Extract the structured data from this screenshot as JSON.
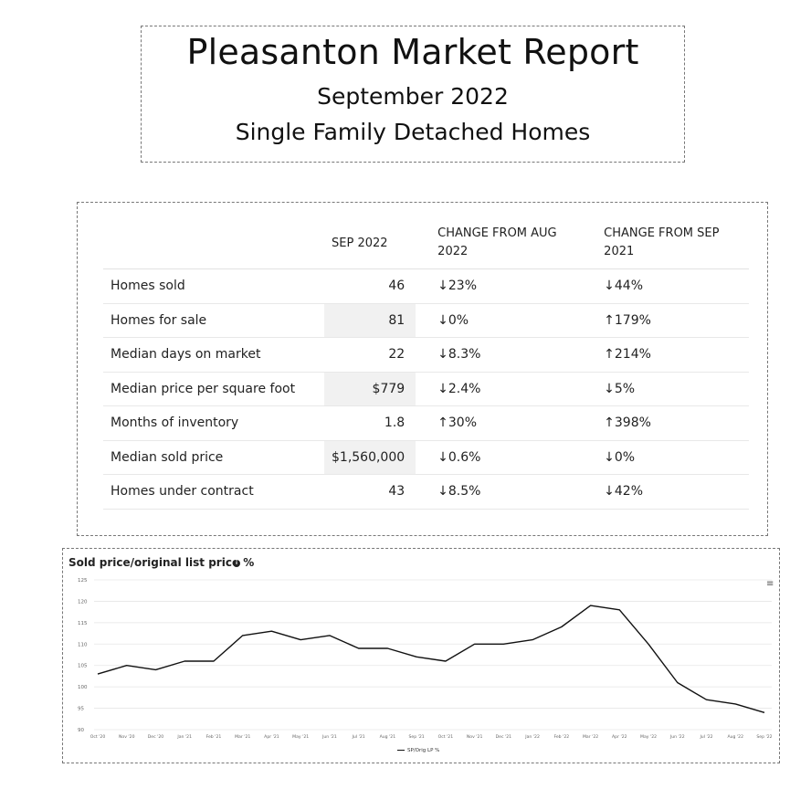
{
  "header": {
    "title": "Pleasanton Market Report",
    "subtitle": "September 2022",
    "subtitle2": "Single Family Detached Homes"
  },
  "table": {
    "columns": [
      "",
      "SEP 2022",
      "CHANGE FROM AUG 2022",
      "CHANGE FROM SEP 2021"
    ],
    "rows": [
      {
        "metric": "Homes sold",
        "value": "46",
        "chg_aug": "↓23%",
        "chg_aug_dir": "down",
        "chg_sep": "↓44%",
        "chg_sep_dir": "down"
      },
      {
        "metric": "Homes for sale",
        "value": "81",
        "chg_aug": "↓0%",
        "chg_aug_dir": "down",
        "chg_sep": "↑179%",
        "chg_sep_dir": "up"
      },
      {
        "metric": "Median days on market",
        "value": "22",
        "chg_aug": "↓8.3%",
        "chg_aug_dir": "down",
        "chg_sep": "↑214%",
        "chg_sep_dir": "up"
      },
      {
        "metric": "Median price per square foot",
        "value": "$779",
        "chg_aug": "↓2.4%",
        "chg_aug_dir": "down",
        "chg_sep": "↓5%",
        "chg_sep_dir": "down"
      },
      {
        "metric": "Months of inventory",
        "value": "1.8",
        "chg_aug": "↑30%",
        "chg_aug_dir": "up",
        "chg_sep": "↑398%",
        "chg_sep_dir": "up"
      },
      {
        "metric": "Median sold price",
        "value": "$1,560,000",
        "chg_aug": "↓0.6%",
        "chg_aug_dir": "down",
        "chg_sep": "↓0%",
        "chg_sep_dir": "down"
      },
      {
        "metric": "Homes under contract",
        "value": "43",
        "chg_aug": "↓8.5%",
        "chg_aug_dir": "down",
        "chg_sep": "↓42%",
        "chg_sep_dir": "down"
      }
    ],
    "colors": {
      "down": "#a3262b",
      "up": "#3c9c4f",
      "shade": "#f1f1f1"
    }
  },
  "chart_data": {
    "type": "line",
    "title": "Sold price/original list price %",
    "xlabel": "",
    "ylabel": "",
    "ylim": [
      90,
      125
    ],
    "yticks": [
      90,
      95,
      100,
      105,
      110,
      115,
      120,
      125
    ],
    "categories": [
      "Oct '20",
      "Nov '20",
      "Dec '20",
      "Jan '21",
      "Feb '21",
      "Mar '21",
      "Apr '21",
      "May '21",
      "Jun '21",
      "Jul '21",
      "Aug '21",
      "Sep '21",
      "Oct '21",
      "Nov '21",
      "Dec '21",
      "Jan '22",
      "Feb '22",
      "Mar '22",
      "Apr '22",
      "May '22",
      "Jun '22",
      "Jul '22",
      "Aug '22",
      "Sep '22"
    ],
    "series": [
      {
        "name": "SP/Orig LP %",
        "color": "#111111",
        "values": [
          103,
          105,
          104,
          106,
          106,
          112,
          113,
          111,
          112,
          109,
          109,
          107,
          106,
          110,
          110,
          111,
          114,
          119,
          118,
          110,
          101,
          97,
          96,
          94
        ]
      }
    ],
    "grid": true,
    "legend_position": "bottom-center"
  },
  "icons": {
    "info": "info-icon",
    "menu": "hamburger-menu-icon"
  }
}
